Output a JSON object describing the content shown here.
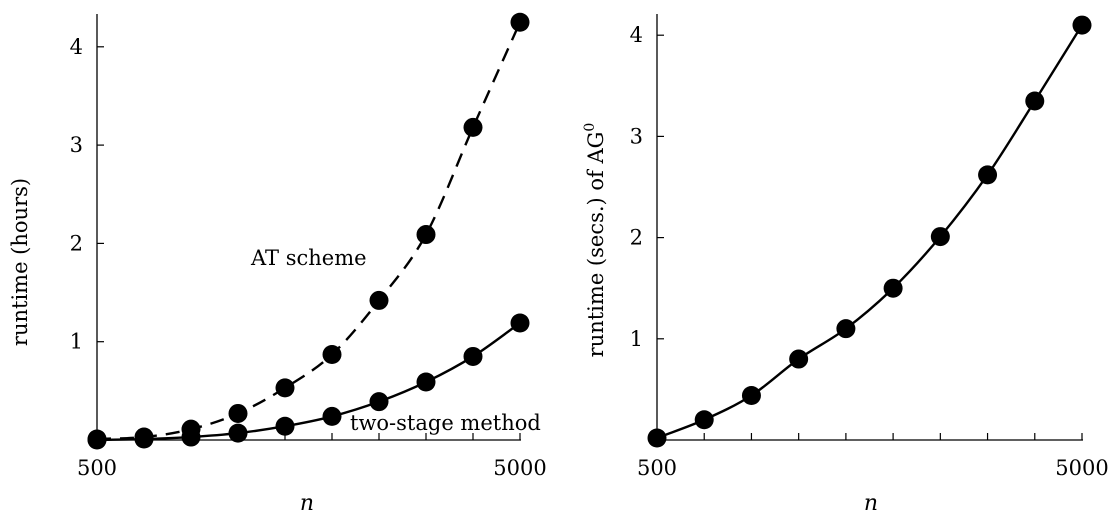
{
  "chart_data": [
    {
      "type": "line",
      "x": [
        500,
        1000,
        1500,
        2000,
        2500,
        3000,
        3500,
        4000,
        4500,
        5000
      ],
      "series": [
        {
          "name": "AT scheme",
          "style": "dashed",
          "values": [
            0.01,
            0.03,
            0.11,
            0.27,
            0.53,
            0.87,
            1.42,
            2.09,
            3.18,
            4.25
          ]
        },
        {
          "name": "two-stage method",
          "style": "solid",
          "values": [
            0.0,
            0.01,
            0.03,
            0.07,
            0.14,
            0.24,
            0.39,
            0.59,
            0.85,
            1.19
          ]
        }
      ],
      "xlabel": "n",
      "ylabel": "runtime (hours)",
      "xtick_labels": [
        "500",
        "5000"
      ],
      "xticks": [
        500,
        1000,
        1500,
        2000,
        2500,
        3000,
        3500,
        4000,
        4500,
        5000
      ],
      "yticks": [
        1,
        2,
        3,
        4
      ],
      "ytick_labels": [
        "1",
        "2",
        "3",
        "4"
      ],
      "xlim": [
        500,
        5000
      ],
      "ylim": [
        0,
        4.3
      ],
      "annotations": [
        {
          "text": "AT scheme",
          "series": "AT scheme"
        },
        {
          "text": "two-stage method",
          "series": "two-stage method"
        }
      ],
      "grid": false
    },
    {
      "type": "line",
      "x": [
        500,
        1000,
        1500,
        2000,
        2500,
        3000,
        3500,
        4000,
        4500,
        5000
      ],
      "series": [
        {
          "style": "solid",
          "values": [
            0.02,
            0.2,
            0.44,
            0.8,
            1.1,
            1.5,
            2.01,
            2.62,
            3.35,
            4.1
          ]
        }
      ],
      "xlabel": "n",
      "ylabel": "runtime (secs.) of AG",
      "ylabel_superscript": "0",
      "xtick_labels": [
        "500",
        "5000"
      ],
      "xticks": [
        500,
        1000,
        1500,
        2000,
        2500,
        3000,
        3500,
        4000,
        4500,
        5000
      ],
      "yticks": [
        1,
        2,
        3,
        4
      ],
      "ytick_labels": [
        "1",
        "2",
        "3",
        "4"
      ],
      "xlim": [
        500,
        5000
      ],
      "ylim": [
        0,
        4.1
      ],
      "grid": false
    }
  ]
}
